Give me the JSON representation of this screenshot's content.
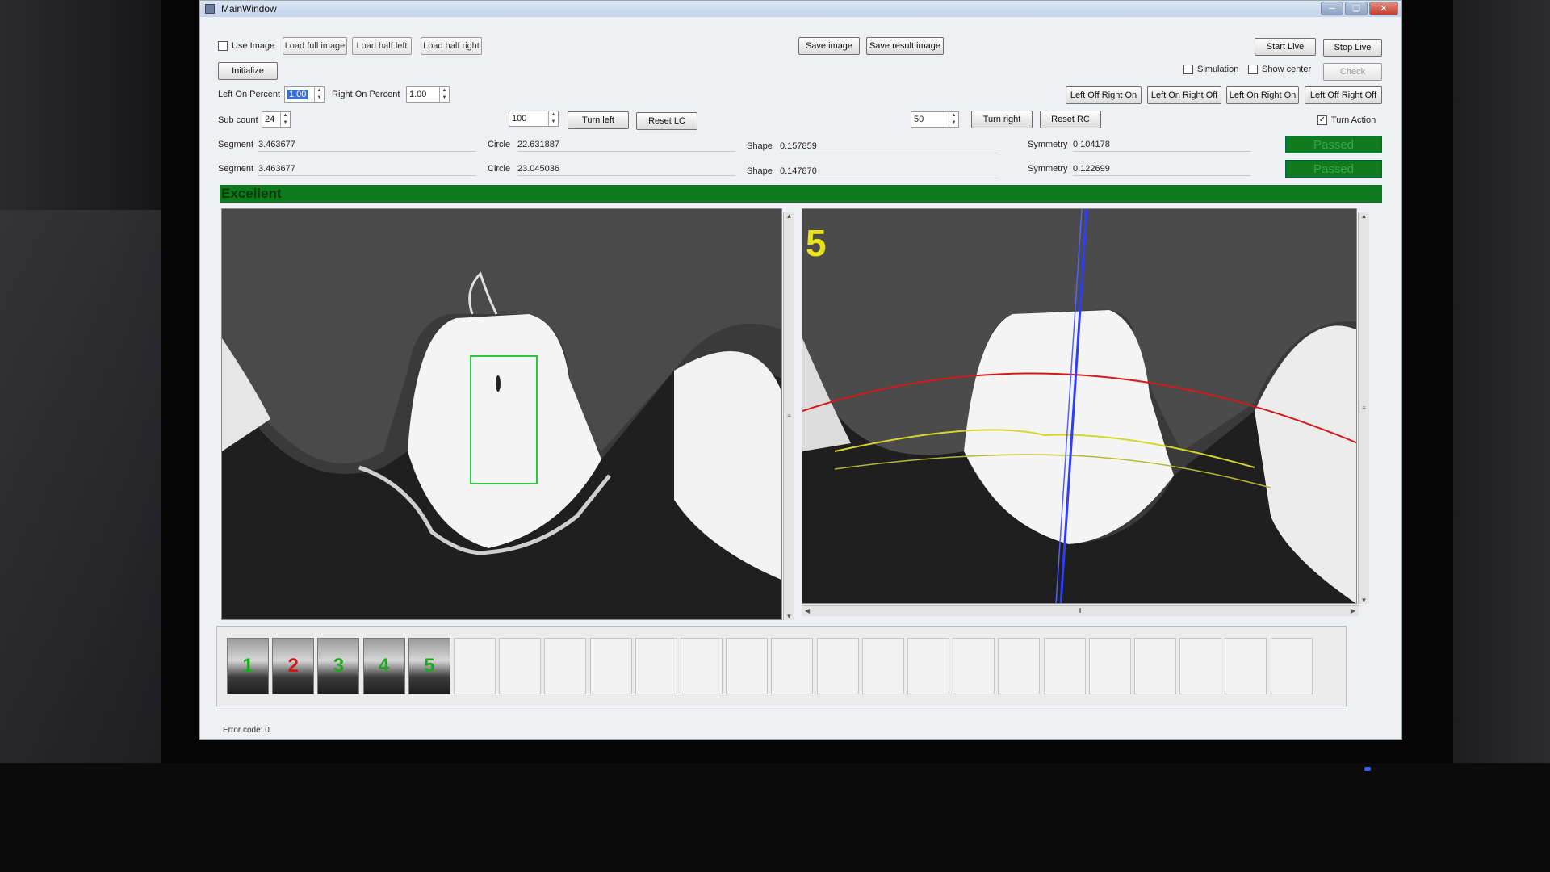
{
  "window": {
    "title": "MainWindow"
  },
  "controls": {
    "use_image": {
      "label": "Use Image",
      "checked": false
    },
    "load_full": "Load full image",
    "load_half_left": "Load half left",
    "load_half_right": "Load half right",
    "initialize": "Initialize",
    "save_image": "Save image",
    "save_result_image": "Save result image",
    "start_live": "Start Live",
    "stop_live": "Stop Live",
    "simulation": {
      "label": "Simulation",
      "checked": false
    },
    "show_center": {
      "label": "Show center",
      "checked": false
    },
    "check": "Check",
    "left_on_percent_label": "Left On Percent",
    "left_on_percent_value": "1.00",
    "right_on_percent_label": "Right On Percent",
    "right_on_percent_value": "1.00",
    "sub_count_label": "Sub count",
    "sub_count_value": "24",
    "left_steps_value": "100",
    "turn_left": "Turn left",
    "reset_lc": "Reset LC",
    "right_steps_value": "50",
    "turn_right": "Turn right",
    "reset_rc": "Reset RC",
    "left_off_right_on": "Left Off Right On",
    "left_on_right_off": "Left On Right Off",
    "left_on_right_on": "Left On Right On",
    "left_off_right_off": "Left Off Right Off",
    "turn_action": {
      "label": "Turn Action",
      "checked": true
    }
  },
  "results": [
    {
      "segment_label": "Segment",
      "segment": "3.463677",
      "circle_label": "Circle",
      "circle": "22.631887",
      "shape_label": "Shape",
      "shape": "0.157859",
      "symmetry_label": "Symmetry",
      "symmetry": "0.104178",
      "status": "Passed"
    },
    {
      "segment_label": "Segment",
      "segment": "3.463677",
      "circle_label": "Circle",
      "circle": "23.045036",
      "shape_label": "Shape",
      "shape": "0.147870",
      "symmetry_label": "Symmetry",
      "symmetry": "0.122699",
      "status": "Passed"
    }
  ],
  "grade": "Excellent",
  "result_view": {
    "count_label": "5"
  },
  "thumbnails": [
    {
      "label": "1",
      "color": "#1fa81f"
    },
    {
      "label": "2",
      "color": "#d01818"
    },
    {
      "label": "3",
      "color": "#1fa81f"
    },
    {
      "label": "4",
      "color": "#1fa81f"
    },
    {
      "label": "5",
      "color": "#1fa81f"
    }
  ],
  "empty_slots": 19,
  "status_bar": "Error code: 0",
  "colors": {
    "pass_green": "#0f7a1e",
    "overlay_red": "#d61a1a",
    "overlay_yellow": "#d8d52a",
    "overlay_blue": "#2d3cff",
    "roi_green": "#27c63b",
    "count_yellow": "#e8e21a"
  }
}
